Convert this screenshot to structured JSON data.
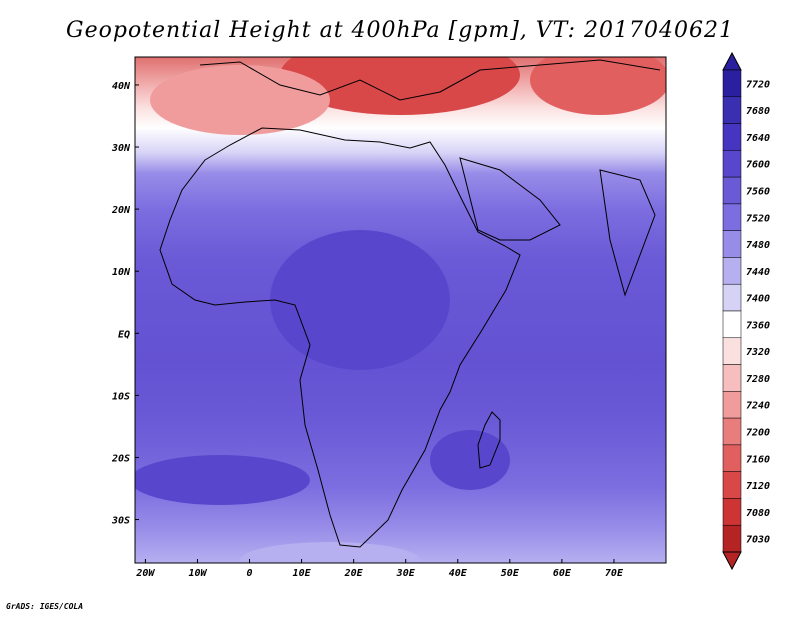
{
  "title": "Geopotential Height at 400hPa [gpm], VT: 2017040621",
  "footer": "GrADS: IGES/COLA",
  "map": {
    "lon_labels": [
      "20W",
      "10W",
      "0",
      "10E",
      "20E",
      "30E",
      "40E",
      "50E",
      "60E",
      "70E"
    ],
    "lat_labels": [
      "40N",
      "30N",
      "20N",
      "10N",
      "EQ",
      "10S",
      "20S",
      "30S"
    ],
    "lon_range": [
      -22,
      80
    ],
    "lat_range": [
      -37,
      44.5
    ]
  },
  "colorbar": {
    "labels": [
      "7720",
      "7680",
      "7640",
      "7600",
      "7560",
      "7520",
      "7480",
      "7440",
      "7400",
      "7360",
      "7320",
      "7280",
      "7240",
      "7200",
      "7160",
      "7120",
      "7080",
      "7030"
    ],
    "colors": [
      "#2a1f9e",
      "#3a2fb0",
      "#4535c0",
      "#5847cc",
      "#6a5ad6",
      "#7c6ee0",
      "#978ce8",
      "#b6aff0",
      "#d6d2f6",
      "#ffffff",
      "#fbe0e0",
      "#f6bebe",
      "#f09c9c",
      "#e97d7d",
      "#e25f5f",
      "#d94848",
      "#cd3434",
      "#b42424"
    ],
    "top_arrow_color": "#2a1f9e",
    "bottom_arrow_color": "#b42424"
  }
}
